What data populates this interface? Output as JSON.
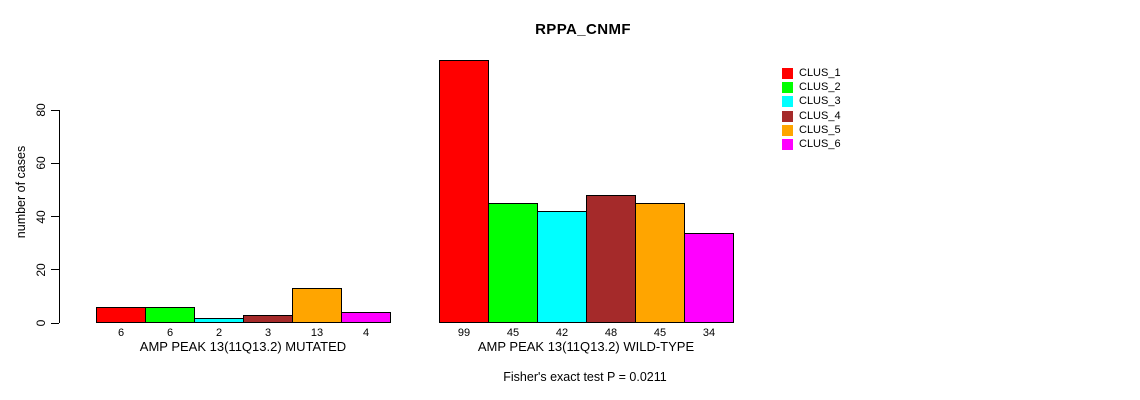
{
  "chart_data": {
    "type": "bar",
    "title": "RPPA_CNMF",
    "ylabel": "number of cases",
    "ylim": [
      0,
      99
    ],
    "yticks": [
      0,
      20,
      40,
      60,
      80
    ],
    "grid": false,
    "bar_value_labels_shown": true,
    "legend": {
      "position": "top-right",
      "items": [
        {
          "label": "CLUS_1",
          "color": "#ff0000"
        },
        {
          "label": "CLUS_2",
          "color": "#00ff00"
        },
        {
          "label": "CLUS_3",
          "color": "#00ffff"
        },
        {
          "label": "CLUS_4",
          "color": "#a52a2a"
        },
        {
          "label": "CLUS_5",
          "color": "#ffa500"
        },
        {
          "label": "CLUS_6",
          "color": "#ff00ff"
        }
      ]
    },
    "groups": [
      {
        "label": "AMP PEAK 13(11Q13.2) MUTATED",
        "values": [
          6,
          6,
          2,
          3,
          13,
          4
        ]
      },
      {
        "label": "AMP PEAK 13(11Q13.2) WILD-TYPE",
        "values": [
          99,
          45,
          42,
          48,
          45,
          34
        ]
      }
    ],
    "annotation": "Fisher's exact test P = 0.0211"
  }
}
